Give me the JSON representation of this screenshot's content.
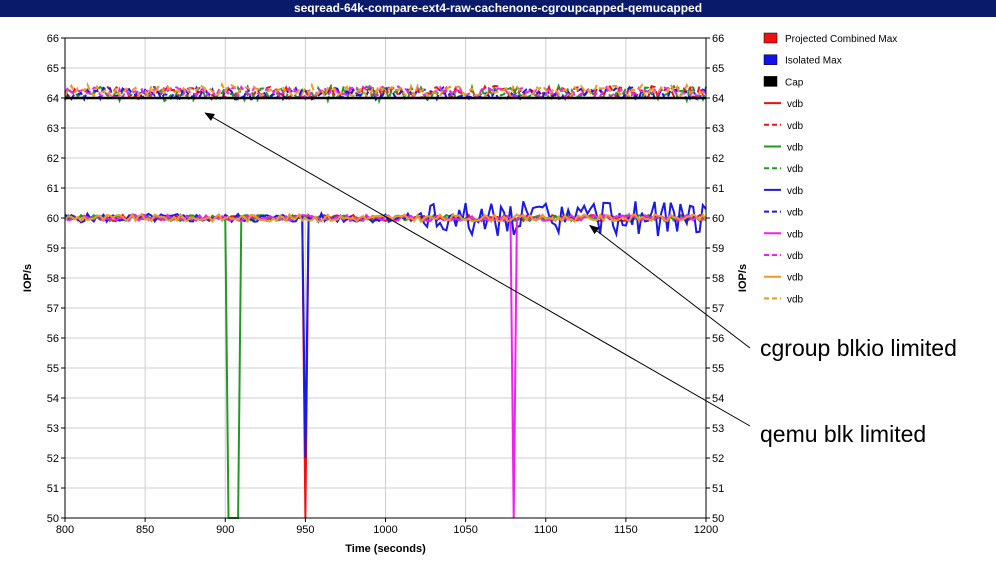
{
  "chart_data": {
    "type": "line",
    "title": "seqread-64k-compare-ext4-raw-cachenone-cgroupcapped-qemucapped",
    "xlabel": "Time (seconds)",
    "ylabel": "IOP/s",
    "xlim": [
      800,
      1200
    ],
    "ylim": [
      50,
      66
    ],
    "x_ticks": [
      800,
      850,
      900,
      950,
      1000,
      1050,
      1100,
      1150,
      1200
    ],
    "y_ticks": [
      50,
      51,
      52,
      53,
      54,
      55,
      56,
      57,
      58,
      59,
      60,
      61,
      62,
      63,
      64,
      65,
      66
    ],
    "grid": true,
    "legend_position": "right",
    "legend": [
      {
        "label": "Projected Combined Max",
        "color": "#ee1111",
        "style": "box"
      },
      {
        "label": "Isolated Max",
        "color": "#1111ee",
        "style": "box"
      },
      {
        "label": "Cap",
        "color": "#000000",
        "style": "box"
      },
      {
        "label": "vdb",
        "color": "#ee1111",
        "style": "solid"
      },
      {
        "label": "vdb",
        "color": "#ee1111",
        "style": "dashed"
      },
      {
        "label": "vdb",
        "color": "#229922",
        "style": "solid"
      },
      {
        "label": "vdb",
        "color": "#229922",
        "style": "dashed"
      },
      {
        "label": "vdb",
        "color": "#1a1ae6",
        "style": "solid"
      },
      {
        "label": "vdb",
        "color": "#1a1ae6",
        "style": "dashed"
      },
      {
        "label": "vdb",
        "color": "#ee22ee",
        "style": "solid"
      },
      {
        "label": "vdb",
        "color": "#ee22ee",
        "style": "dashed"
      },
      {
        "label": "vdb",
        "color": "#ee9922",
        "style": "solid"
      },
      {
        "label": "vdb",
        "color": "#ee9922",
        "style": "dashed"
      }
    ],
    "cap_value": 64,
    "series": [
      {
        "color": "#ee1111",
        "style": "solid",
        "base": 60,
        "amp": 0.1,
        "seed": 1,
        "dips": [
          {
            "x": 950,
            "y": 50
          }
        ]
      },
      {
        "color": "#ee1111",
        "style": "dashed",
        "base": 64.2,
        "amp": 0.2,
        "seed": 2,
        "dips": []
      },
      {
        "color": "#229922",
        "style": "solid",
        "base": 60,
        "amp": 0.1,
        "seed": 3,
        "dips": [
          {
            "x": 903,
            "y": 50
          },
          {
            "x": 907,
            "y": 50
          }
        ]
      },
      {
        "color": "#229922",
        "style": "dashed",
        "base": 64.15,
        "amp": 0.25,
        "seed": 4,
        "dips": []
      },
      {
        "color": "#1a1ae6",
        "style": "solid",
        "base": 60,
        "amp": 0.15,
        "seed": 5,
        "dips": [
          {
            "x": 950,
            "y": 52
          }
        ]
      },
      {
        "color": "#1a1ae6",
        "style": "dashed",
        "base": 64.15,
        "amp": 0.2,
        "seed": 6,
        "dips": []
      },
      {
        "color": "#ee22ee",
        "style": "solid",
        "base": 60,
        "amp": 0.1,
        "seed": 7,
        "dips": [
          {
            "x": 1080,
            "y": 50
          }
        ]
      },
      {
        "color": "#ee22ee",
        "style": "dashed",
        "base": 64.2,
        "amp": 0.2,
        "seed": 8,
        "dips": []
      },
      {
        "color": "#ee9922",
        "style": "solid",
        "base": 60,
        "amp": 0.12,
        "seed": 9,
        "dips": []
      },
      {
        "color": "#ee9922",
        "style": "dashed",
        "base": 64.25,
        "amp": 0.2,
        "seed": 10,
        "dips": []
      }
    ],
    "annotations": [
      {
        "text": "cgroup blkio limited",
        "arrow_to": [
          1125,
          59.85
        ]
      },
      {
        "text": "qemu blk limited",
        "arrow_to": [
          885,
          63.6
        ]
      }
    ]
  }
}
